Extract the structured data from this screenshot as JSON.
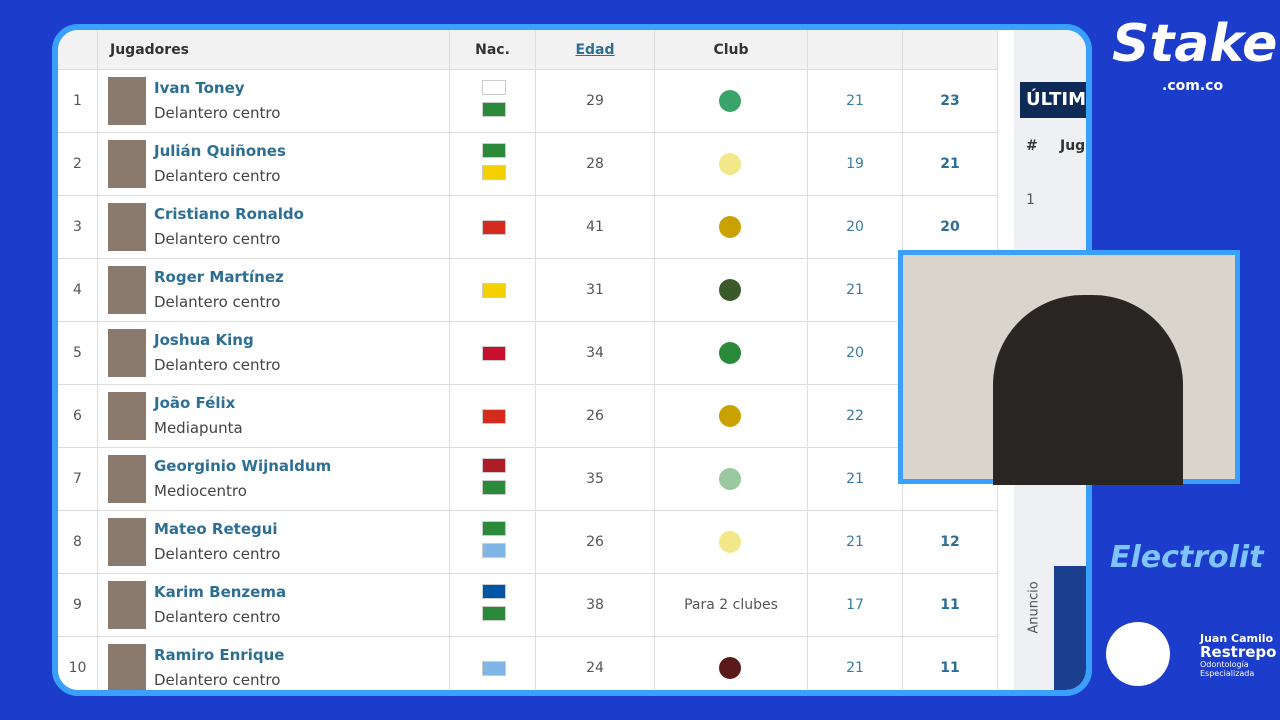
{
  "table": {
    "headers": {
      "players": "Jugadores",
      "nationality": "Nac.",
      "age": "Edad",
      "club": "Club"
    },
    "rows": [
      {
        "rank": "1",
        "name": "Ivan Toney",
        "position": "Delantero centro",
        "age": "29",
        "apps": "21",
        "goals": "23"
      },
      {
        "rank": "2",
        "name": "Julián Quiñones",
        "position": "Delantero centro",
        "age": "28",
        "apps": "19",
        "goals": "21"
      },
      {
        "rank": "3",
        "name": "Cristiano Ronaldo",
        "position": "Delantero centro",
        "age": "41",
        "apps": "20",
        "goals": "20"
      },
      {
        "rank": "4",
        "name": "Roger Martínez",
        "position": "Delantero centro",
        "age": "31",
        "apps": "21"
      },
      {
        "rank": "5",
        "name": "Joshua King",
        "position": "Delantero centro",
        "age": "34",
        "apps": "20"
      },
      {
        "rank": "6",
        "name": "João Félix",
        "position": "Mediapunta",
        "age": "26",
        "apps": "22"
      },
      {
        "rank": "7",
        "name": "Georginio Wijnaldum",
        "position": "Mediocentro",
        "age": "35",
        "apps": "21"
      },
      {
        "rank": "8",
        "name": "Mateo Retegui",
        "position": "Delantero centro",
        "age": "26",
        "apps": "21",
        "goals": "12"
      },
      {
        "rank": "9",
        "name": "Karim Benzema",
        "position": "Delantero centro",
        "age": "38",
        "club": "Para 2 clubes",
        "apps": "17",
        "goals": "11"
      },
      {
        "rank": "10",
        "name": "Ramiro Enrique",
        "position": "Delantero centro",
        "age": "24",
        "apps": "21",
        "goals": "11"
      }
    ]
  },
  "side_panel": {
    "title": "ÚLTIMO",
    "col_rank": "#",
    "col_player": "Jug",
    "row_rank": "1",
    "ad_label": "Anuncio"
  },
  "overlay": {
    "sponsor": "Stake",
    "sponsor_domain": ".com.co",
    "sponsor2": "Electrolit",
    "name_first": "Juan Camilo",
    "name_last": "Restrepo",
    "subtitle1": "Odontología",
    "subtitle2": "Especializada"
  }
}
